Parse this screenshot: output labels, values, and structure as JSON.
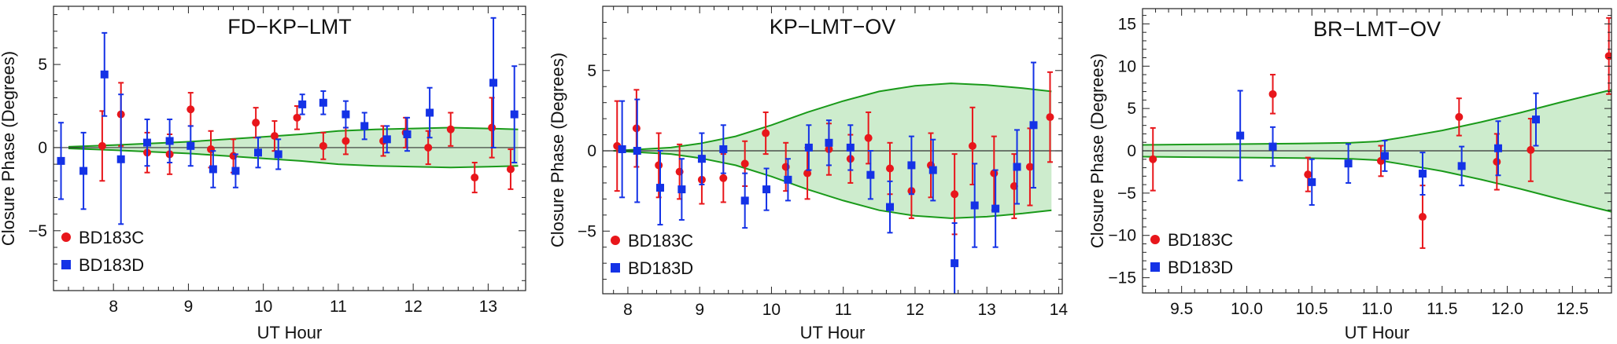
{
  "chart_data": [
    {
      "type": "scatter",
      "title": "FD−KP−LMT",
      "xlabel": "UT Hour",
      "ylabel": "Closure Phase (Degrees)",
      "xlim": [
        7.2,
        13.5
      ],
      "ylim": [
        -8.6,
        8.5
      ],
      "xticks": [
        8,
        9,
        10,
        11,
        12,
        13
      ],
      "xtick_labels": [
        "8",
        "9",
        "10",
        "11",
        "12",
        "13"
      ],
      "yticks": [
        -5,
        0,
        5
      ],
      "ytick_labels": [
        "−5",
        "0",
        "5"
      ],
      "zero_line": true,
      "legend_position": "lower-left",
      "colors": {
        "BD183C": "#e8161b",
        "BD183D": "#1432e6",
        "band_fill": "#cdeccd",
        "band_line": "#1a9a1a"
      },
      "band": {
        "x": [
          7.4,
          8.0,
          8.5,
          9.0,
          9.5,
          10.0,
          10.5,
          11.0,
          11.5,
          12.0,
          12.5,
          13.0,
          13.4
        ],
        "upper": [
          0.05,
          0.15,
          0.25,
          0.35,
          0.5,
          0.65,
          0.8,
          1.0,
          1.1,
          1.15,
          1.2,
          1.15,
          1.1
        ],
        "lower": [
          -0.05,
          -0.15,
          -0.25,
          -0.35,
          -0.5,
          -0.65,
          -0.8,
          -1.0,
          -1.1,
          -1.15,
          -1.2,
          -1.15,
          -1.1
        ]
      },
      "series": [
        {
          "name": "BD183C",
          "marker": "circle",
          "points": [
            {
              "x": 7.85,
              "y": 0.1,
              "err": 2.1
            },
            {
              "x": 8.1,
              "y": 2.0,
              "err": 1.9
            },
            {
              "x": 8.45,
              "y": -0.3,
              "err": 1.2
            },
            {
              "x": 8.75,
              "y": -0.4,
              "err": 1.2
            },
            {
              "x": 9.03,
              "y": 2.3,
              "err": 1.0
            },
            {
              "x": 9.3,
              "y": -0.1,
              "err": 1.1
            },
            {
              "x": 9.6,
              "y": -0.5,
              "err": 1.0
            },
            {
              "x": 9.9,
              "y": 1.5,
              "err": 0.9
            },
            {
              "x": 10.15,
              "y": 0.7,
              "err": 0.9
            },
            {
              "x": 10.45,
              "y": 1.8,
              "err": 0.7
            },
            {
              "x": 10.8,
              "y": 0.1,
              "err": 0.8
            },
            {
              "x": 11.1,
              "y": 0.4,
              "err": 0.8
            },
            {
              "x": 11.6,
              "y": 0.4,
              "err": 0.9
            },
            {
              "x": 11.9,
              "y": 0.9,
              "err": 0.9
            },
            {
              "x": 12.2,
              "y": 0.0,
              "err": 1.0
            },
            {
              "x": 12.5,
              "y": 1.1,
              "err": 1.0
            },
            {
              "x": 12.82,
              "y": -1.8,
              "err": 0.9
            },
            {
              "x": 13.05,
              "y": 1.2,
              "err": 1.8
            },
            {
              "x": 13.3,
              "y": -1.3,
              "err": 1.2
            }
          ]
        },
        {
          "name": "BD183D",
          "marker": "square",
          "points": [
            {
              "x": 7.3,
              "y": -0.8,
              "err": 2.3
            },
            {
              "x": 7.6,
              "y": -1.4,
              "err": 2.3
            },
            {
              "x": 7.88,
              "y": 4.4,
              "err": 2.5
            },
            {
              "x": 8.1,
              "y": -0.7,
              "err": 3.9
            },
            {
              "x": 8.45,
              "y": 0.3,
              "err": 1.4
            },
            {
              "x": 8.75,
              "y": 0.4,
              "err": 1.3
            },
            {
              "x": 9.03,
              "y": 0.1,
              "err": 1.2
            },
            {
              "x": 9.33,
              "y": -1.3,
              "err": 1.1
            },
            {
              "x": 9.63,
              "y": -1.4,
              "err": 1.0
            },
            {
              "x": 9.93,
              "y": -0.3,
              "err": 0.9
            },
            {
              "x": 10.2,
              "y": -0.4,
              "err": 0.9
            },
            {
              "x": 10.52,
              "y": 2.6,
              "err": 0.6
            },
            {
              "x": 10.8,
              "y": 2.7,
              "err": 0.7
            },
            {
              "x": 11.1,
              "y": 2.0,
              "err": 0.8
            },
            {
              "x": 11.35,
              "y": 1.3,
              "err": 0.8
            },
            {
              "x": 11.65,
              "y": 0.5,
              "err": 0.8
            },
            {
              "x": 11.92,
              "y": 0.8,
              "err": 1.0
            },
            {
              "x": 12.22,
              "y": 2.1,
              "err": 1.5
            },
            {
              "x": 13.07,
              "y": 3.9,
              "err": 3.9
            },
            {
              "x": 13.35,
              "y": 2.0,
              "err": 2.9
            }
          ]
        }
      ]
    },
    {
      "type": "scatter",
      "title": "KP−LMT−OV",
      "xlabel": "UT Hour",
      "ylabel": "Closure Phase (Degrees)",
      "xlim": [
        7.65,
        14.05
      ],
      "ylim": [
        -8.9,
        9.0
      ],
      "xticks": [
        8,
        9,
        10,
        11,
        12,
        13,
        14
      ],
      "xtick_labels": [
        "8",
        "9",
        "10",
        "11",
        "12",
        "13",
        "14"
      ],
      "yticks": [
        -5,
        0,
        5
      ],
      "ytick_labels": [
        "−5",
        "0",
        "5"
      ],
      "zero_line": true,
      "legend_position": "lower-left",
      "colors": {
        "BD183C": "#e8161b",
        "BD183D": "#1432e6",
        "band_fill": "#cdeccd",
        "band_line": "#1a9a1a"
      },
      "band": {
        "x": [
          7.8,
          8.2,
          8.6,
          9.0,
          9.5,
          10.0,
          10.5,
          11.0,
          11.5,
          12.0,
          12.5,
          13.0,
          13.5,
          13.9
        ],
        "upper": [
          0.0,
          0.1,
          0.2,
          0.45,
          0.9,
          1.6,
          2.4,
          3.1,
          3.7,
          4.05,
          4.2,
          4.1,
          3.9,
          3.7
        ],
        "lower": [
          0.0,
          -0.1,
          -0.2,
          -0.45,
          -0.9,
          -1.6,
          -2.4,
          -3.1,
          -3.7,
          -4.05,
          -4.2,
          -4.1,
          -3.9,
          -3.7
        ]
      },
      "series": [
        {
          "name": "BD183C",
          "marker": "circle",
          "points": [
            {
              "x": 7.85,
              "y": 0.3,
              "err": 2.8
            },
            {
              "x": 8.12,
              "y": 1.4,
              "err": 2.4
            },
            {
              "x": 8.43,
              "y": -0.9,
              "err": 2.0
            },
            {
              "x": 8.72,
              "y": -1.3,
              "err": 1.7
            },
            {
              "x": 9.03,
              "y": -1.8,
              "err": 1.5
            },
            {
              "x": 9.33,
              "y": -1.7,
              "err": 1.5
            },
            {
              "x": 9.63,
              "y": -0.8,
              "err": 1.4
            },
            {
              "x": 9.92,
              "y": 1.1,
              "err": 1.3
            },
            {
              "x": 10.2,
              "y": -1.0,
              "err": 1.5
            },
            {
              "x": 10.5,
              "y": -1.4,
              "err": 1.6
            },
            {
              "x": 10.8,
              "y": 0.1,
              "err": 1.6
            },
            {
              "x": 11.1,
              "y": -0.5,
              "err": 1.5
            },
            {
              "x": 11.35,
              "y": 0.8,
              "err": 1.6
            },
            {
              "x": 11.65,
              "y": -1.1,
              "err": 1.6
            },
            {
              "x": 11.95,
              "y": -2.5,
              "err": 1.7
            },
            {
              "x": 12.22,
              "y": -0.9,
              "err": 2.0
            },
            {
              "x": 12.55,
              "y": -2.7,
              "err": 2.5
            },
            {
              "x": 12.8,
              "y": 0.3,
              "err": 2.4
            },
            {
              "x": 13.1,
              "y": -1.4,
              "err": 2.3
            },
            {
              "x": 13.38,
              "y": -2.2,
              "err": 2.0
            },
            {
              "x": 13.6,
              "y": -1.0,
              "err": 2.4
            },
            {
              "x": 13.88,
              "y": 2.1,
              "err": 2.8
            }
          ]
        },
        {
          "name": "BD183D",
          "marker": "square",
          "points": [
            {
              "x": 7.92,
              "y": 0.1,
              "err": 3.0
            },
            {
              "x": 8.13,
              "y": 0.0,
              "err": 3.2
            },
            {
              "x": 8.45,
              "y": -2.3,
              "err": 2.3
            },
            {
              "x": 8.75,
              "y": -2.4,
              "err": 1.9
            },
            {
              "x": 9.03,
              "y": -0.5,
              "err": 1.6
            },
            {
              "x": 9.33,
              "y": 0.1,
              "err": 1.5
            },
            {
              "x": 9.63,
              "y": -3.1,
              "err": 1.7
            },
            {
              "x": 9.93,
              "y": -2.4,
              "err": 1.3
            },
            {
              "x": 10.23,
              "y": -1.8,
              "err": 1.3
            },
            {
              "x": 10.52,
              "y": 0.2,
              "err": 1.4
            },
            {
              "x": 10.8,
              "y": 0.5,
              "err": 1.4
            },
            {
              "x": 11.1,
              "y": 0.2,
              "err": 1.4
            },
            {
              "x": 11.38,
              "y": -1.5,
              "err": 1.5
            },
            {
              "x": 11.65,
              "y": -3.5,
              "err": 1.6
            },
            {
              "x": 11.95,
              "y": -0.9,
              "err": 1.8
            },
            {
              "x": 12.25,
              "y": -1.2,
              "err": 1.9
            },
            {
              "x": 12.55,
              "y": -7.0,
              "err": 2.5
            },
            {
              "x": 12.83,
              "y": -3.4,
              "err": 2.6
            },
            {
              "x": 13.12,
              "y": -3.6,
              "err": 2.4
            },
            {
              "x": 13.42,
              "y": -1.0,
              "err": 2.3
            },
            {
              "x": 13.65,
              "y": 1.6,
              "err": 3.9
            }
          ]
        }
      ]
    },
    {
      "type": "scatter",
      "title": "BR−LMT−OV",
      "xlabel": "UT Hour",
      "ylabel": "Closure Phase (Degrees)",
      "xlim": [
        9.2,
        12.8
      ],
      "ylim": [
        -16.8,
        16.8
      ],
      "xticks": [
        9.5,
        10.0,
        10.5,
        11.0,
        11.5,
        12.0,
        12.5
      ],
      "xtick_labels": [
        "9.5",
        "10.0",
        "10.5",
        "11.0",
        "11.5",
        "12.0",
        "12.5"
      ],
      "yticks": [
        -15,
        -10,
        -5,
        0,
        5,
        10,
        15
      ],
      "ytick_labels": [
        "−15",
        "−10",
        "−5",
        "0",
        "5",
        "10",
        "15"
      ],
      "zero_line": true,
      "legend_position": "lower-left",
      "colors": {
        "BD183C": "#e8161b",
        "BD183D": "#1432e6",
        "band_fill": "#cdeccd",
        "band_line": "#1a9a1a"
      },
      "band": {
        "x": [
          9.2,
          9.6,
          10.0,
          10.4,
          10.8,
          11.0,
          11.2,
          11.5,
          11.8,
          12.1,
          12.4,
          12.8
        ],
        "upper": [
          0.7,
          0.75,
          0.8,
          0.85,
          0.95,
          1.1,
          1.6,
          2.4,
          3.4,
          4.5,
          5.7,
          7.2
        ],
        "lower": [
          -0.7,
          -0.75,
          -0.8,
          -0.85,
          -0.95,
          -1.1,
          -1.6,
          -2.4,
          -3.4,
          -4.5,
          -5.7,
          -7.2
        ]
      },
      "series": [
        {
          "name": "BD183C",
          "marker": "circle",
          "points": [
            {
              "x": 9.28,
              "y": -1.0,
              "err": 3.7
            },
            {
              "x": 10.2,
              "y": 6.7,
              "err": 2.3
            },
            {
              "x": 10.47,
              "y": -2.8,
              "err": 2.0
            },
            {
              "x": 11.03,
              "y": -1.2,
              "err": 1.8
            },
            {
              "x": 11.35,
              "y": -7.8,
              "err": 3.7
            },
            {
              "x": 11.63,
              "y": 4.0,
              "err": 2.2
            },
            {
              "x": 11.92,
              "y": -1.3,
              "err": 3.3
            },
            {
              "x": 12.18,
              "y": 0.1,
              "err": 3.7
            },
            {
              "x": 12.78,
              "y": 11.2,
              "err": 4.5
            }
          ]
        },
        {
          "name": "BD183D",
          "marker": "square",
          "points": [
            {
              "x": 9.95,
              "y": 1.8,
              "err": 5.3
            },
            {
              "x": 10.2,
              "y": 0.5,
              "err": 2.3
            },
            {
              "x": 10.5,
              "y": -3.7,
              "err": 2.7
            },
            {
              "x": 10.78,
              "y": -1.5,
              "err": 2.3
            },
            {
              "x": 11.06,
              "y": -0.6,
              "err": 1.8
            },
            {
              "x": 11.35,
              "y": -2.7,
              "err": 2.5
            },
            {
              "x": 11.65,
              "y": -1.8,
              "err": 2.3
            },
            {
              "x": 11.93,
              "y": 0.3,
              "err": 3.2
            },
            {
              "x": 12.22,
              "y": 3.7,
              "err": 3.1
            }
          ]
        }
      ]
    }
  ]
}
